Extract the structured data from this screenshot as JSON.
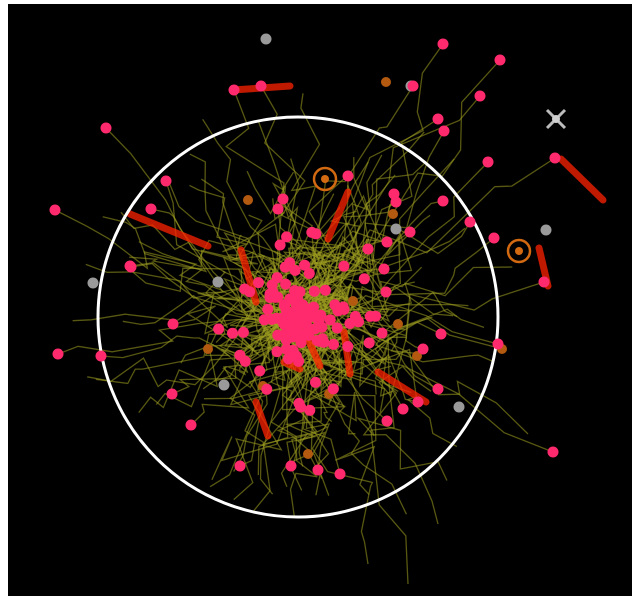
{
  "scene": {
    "background": "#000000",
    "colors": {
      "agent": "#ff2a6d",
      "trail": "#a0a020",
      "boundary": "#ffffff",
      "motion_streak": "#ff2200",
      "inactive": "#9a9a9a",
      "food": "#b35a10",
      "target_ring": "#d36a12"
    },
    "icons": [
      "boundary-circle",
      "target-ring-icon",
      "x-marker-icon"
    ]
  }
}
